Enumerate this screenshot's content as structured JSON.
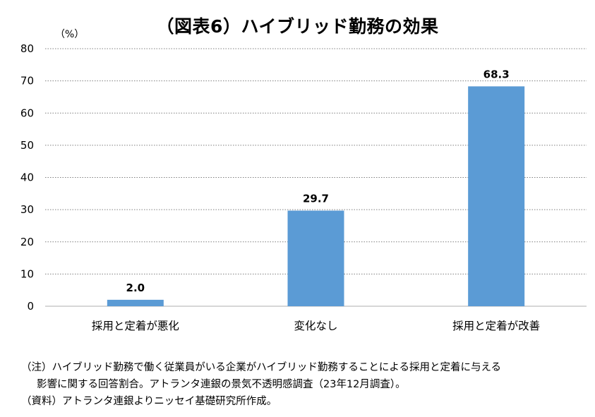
{
  "title": "（図表6）ハイブリッド勤務の効果",
  "unit_label": "（%）",
  "chart_data": {
    "type": "bar",
    "categories": [
      "採用と定着が悪化",
      "変化なし",
      "採用と定着が改善"
    ],
    "values": [
      2.0,
      29.7,
      68.3
    ],
    "value_labels": [
      "2.0",
      "29.7",
      "68.3"
    ],
    "ylim": [
      0,
      80
    ],
    "yticks": [
      0,
      10,
      20,
      30,
      40,
      50,
      60,
      70,
      80
    ],
    "grid": true,
    "bar_color": "#5b9bd5",
    "grid_color": "#7f7f7f",
    "axis_color": "#bfbfbf"
  },
  "notes": {
    "line1": "（注）ハイブリッド勤務で働く従業員がいる企業がハイブリッド勤務することによる採用と定着に与える",
    "line2": "影響に関する回答割合。アトランタ連銀の景気不透明感調査（23年12月調査）。",
    "source": "（資料）アトランタ連銀よりニッセイ基礎研究所作成。"
  }
}
